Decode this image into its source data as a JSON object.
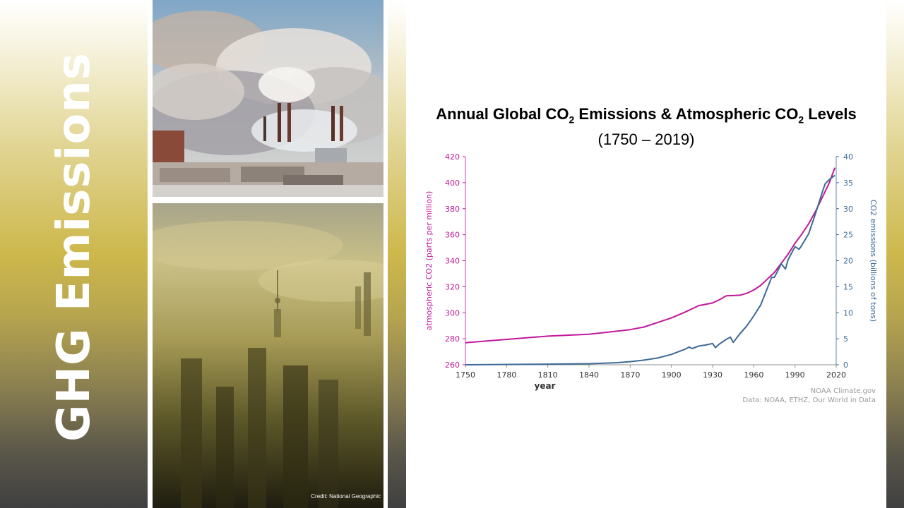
{
  "side_title": "GHG Emissions",
  "photo_credit": "Credit: National Geographic",
  "colors": {
    "atmospheric": "#c2189a",
    "emissions": "#3d6a96",
    "axis": "#8f8f8f"
  },
  "chart_data": {
    "type": "line",
    "title_main": "Annual Global CO2 Emissions & Atmospheric CO2 Levels",
    "title_range": "(1750 – 2019)",
    "xlabel": "year",
    "ylabel_left": "atmospheric CO2 (parts per million)",
    "ylabel_right": "CO2 emissions (billions of tons)",
    "xlim": [
      1750,
      2020
    ],
    "ylim_left": [
      260,
      420
    ],
    "ylim_right": [
      0,
      40
    ],
    "x_ticks": [
      1750,
      1780,
      1810,
      1840,
      1870,
      1900,
      1930,
      1960,
      1990,
      2020
    ],
    "y_left_ticks": [
      260,
      280,
      300,
      320,
      340,
      360,
      380,
      400,
      420
    ],
    "y_right_ticks": [
      0,
      5,
      10,
      15,
      20,
      25,
      30,
      35,
      40
    ],
    "grid": false,
    "source_lines": [
      "NOAA Climate.gov",
      "Data: NOAA, ETHZ, Our World in Data"
    ],
    "series": [
      {
        "name": "atmospheric CO2",
        "axis": "left",
        "x": [
          1750,
          1780,
          1810,
          1840,
          1870,
          1880,
          1890,
          1900,
          1910,
          1920,
          1930,
          1935,
          1940,
          1945,
          1950,
          1955,
          1960,
          1965,
          1970,
          1975,
          1980,
          1985,
          1990,
          1995,
          2000,
          2005,
          2010,
          2015,
          2019
        ],
        "values": [
          277,
          279.5,
          282,
          283.5,
          287,
          289,
          292.5,
          296,
          300.5,
          305.5,
          307.5,
          310,
          313,
          313.2,
          313.5,
          315,
          317.5,
          321,
          326,
          331,
          338,
          345,
          353.5,
          360.5,
          368.5,
          378,
          389,
          400,
          411.5
        ]
      },
      {
        "name": "CO2 emissions",
        "axis": "right",
        "x": [
          1750,
          1800,
          1840,
          1860,
          1870,
          1880,
          1890,
          1900,
          1905,
          1910,
          1913,
          1915,
          1920,
          1925,
          1930,
          1932,
          1935,
          1940,
          1943,
          1945,
          1950,
          1955,
          1960,
          1965,
          1970,
          1973,
          1975,
          1980,
          1983,
          1985,
          1990,
          1993,
          1995,
          2000,
          2005,
          2010,
          2012,
          2015,
          2019
        ],
        "values": [
          0,
          0.1,
          0.2,
          0.4,
          0.6,
          0.9,
          1.3,
          2,
          2.5,
          3,
          3.4,
          3.1,
          3.6,
          3.8,
          4.1,
          3.3,
          4.0,
          4.9,
          5.3,
          4.3,
          6.0,
          7.5,
          9.4,
          11.5,
          14.8,
          16.8,
          16.8,
          19.4,
          18.4,
          20.2,
          22.7,
          22.2,
          23.0,
          25.2,
          29.1,
          33.3,
          34.8,
          35.6,
          36.4
        ]
      }
    ]
  }
}
